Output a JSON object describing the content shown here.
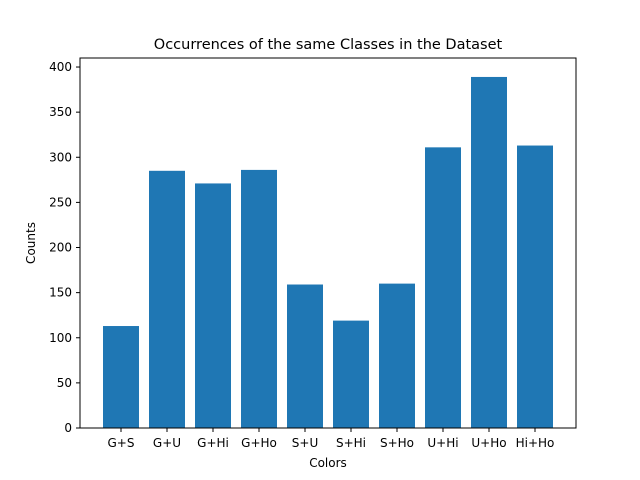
{
  "chart_data": {
    "type": "bar",
    "title": "Occurrences of the same Classes in the Dataset",
    "xlabel": "Colors",
    "ylabel": "Counts",
    "categories": [
      "G+S",
      "G+U",
      "G+Hi",
      "G+Ho",
      "S+U",
      "S+Hi",
      "S+Ho",
      "U+Hi",
      "U+Ho",
      "Hi+Ho"
    ],
    "values": [
      113,
      285,
      271,
      286,
      159,
      119,
      160,
      311,
      389,
      313
    ],
    "ylim": [
      0,
      410
    ],
    "yticks": [
      0,
      50,
      100,
      150,
      200,
      250,
      300,
      350,
      400
    ],
    "bar_color": "#1f77b4",
    "grid": false,
    "legend": "none"
  }
}
